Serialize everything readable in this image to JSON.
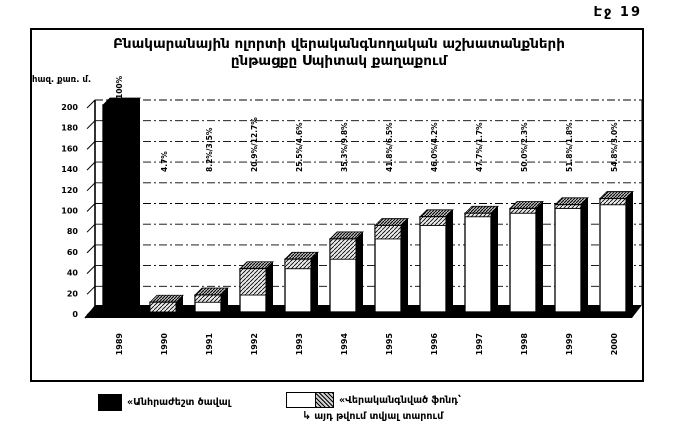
{
  "page": {
    "number_label": "Էջ 19"
  },
  "title": {
    "line1": "Բնակարանային ոլորտի վերականգնողական աշխատանքների",
    "line2": "ընթացքը Սպիտակ քաղաքում"
  },
  "chart_data": {
    "type": "bar",
    "title": "Բնակարանային ոլորտի վերականգնողական աշխատանքների ընթացքը Սպիտակ քաղաքում",
    "ylabel": "հազ. քառ. մ.",
    "ylim": [
      0,
      200
    ],
    "ytick_step": 20,
    "grid": true,
    "style": "3d-bars, scanned monochrome document",
    "categories": [
      "1989",
      "1990",
      "1991",
      "1992",
      "1993",
      "1994",
      "1995",
      "1996",
      "1997",
      "1998",
      "1999",
      "2000"
    ],
    "bars": [
      {
        "year": "1989",
        "series": "necessary",
        "total": 200.0,
        "annual": 0,
        "label": "100%"
      },
      {
        "year": "1990",
        "series": "restored",
        "total": 9.4,
        "annual": 9.4,
        "label": "4.7%"
      },
      {
        "year": "1991",
        "series": "restored",
        "total": 16.4,
        "annual": 7.0,
        "label": "8.2%/3.5%"
      },
      {
        "year": "1992",
        "series": "restored",
        "total": 41.8,
        "annual": 25.4,
        "label": "20.9%/12.7%"
      },
      {
        "year": "1993",
        "series": "restored",
        "total": 51.0,
        "annual": 9.2,
        "label": "25.5%/4.6%"
      },
      {
        "year": "1994",
        "series": "restored",
        "total": 70.6,
        "annual": 19.6,
        "label": "35.3%/9.8%"
      },
      {
        "year": "1995",
        "series": "restored",
        "total": 83.6,
        "annual": 13.0,
        "label": "41.8%/6.5%"
      },
      {
        "year": "1996",
        "series": "restored",
        "total": 92.0,
        "annual": 8.4,
        "label": "46.0%/4.2%"
      },
      {
        "year": "1997",
        "series": "restored",
        "total": 95.4,
        "annual": 3.4,
        "label": "47.7%/1.7%"
      },
      {
        "year": "1998",
        "series": "restored",
        "total": 100.0,
        "annual": 4.6,
        "label": "50.0%/2.3%"
      },
      {
        "year": "1999",
        "series": "restored",
        "total": 103.6,
        "annual": 3.6,
        "label": "51.8%/1.8%"
      },
      {
        "year": "2000",
        "series": "restored",
        "total": 109.6,
        "annual": 6.0,
        "label": "54.8%/3.0%"
      }
    ],
    "legend_position": "bottom"
  },
  "legend": {
    "item1": {
      "label": "«Անհրաժեշտ ծավալ"
    },
    "item2": {
      "line1": "«Վերականգնված ֆոնդ՝",
      "arrow": "↳",
      "line2": "այդ թվում տվյալ տարում"
    }
  },
  "colors": {
    "ink": "#000000",
    "paper": "#ffffff",
    "necessary_bar": "#000000",
    "restored_bar": "#ffffff",
    "hatch_gray": "#cfcfcf"
  }
}
